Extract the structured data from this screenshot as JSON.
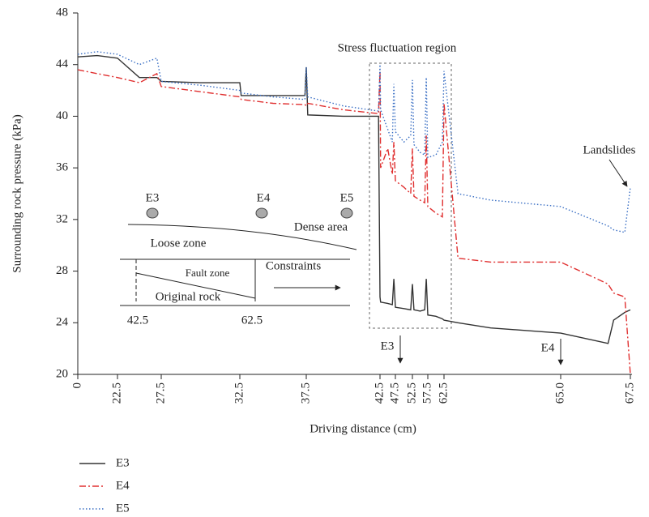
{
  "chart_data": {
    "type": "line",
    "x_label": "Driving distance (cm)",
    "y_label": "Surrounding rock pressure (kPa)",
    "xlim": [
      0,
      67.5
    ],
    "xticks": [
      0,
      22.5,
      27.5,
      32.5,
      37.5,
      42.5,
      47.5,
      52.5,
      57.5,
      62.5,
      {
        "value": 65,
        "label": "65.0"
      },
      67.5
    ],
    "ylim": [
      20,
      48
    ],
    "yticks": [
      20,
      24,
      28,
      32,
      36,
      40,
      44,
      48
    ],
    "x": [
      0,
      11,
      22.5,
      25,
      27,
      27.5,
      30,
      32.5,
      32.6,
      35,
      37.4,
      37.5,
      37.6,
      40,
      42.4,
      42.5,
      42.7,
      45,
      46.5,
      47,
      47.5,
      50,
      52,
      52.5,
      53,
      55,
      56.5,
      57,
      57.5,
      60,
      62,
      62.5,
      62.8,
      63.5,
      65,
      66.7,
      66.9,
      67.3,
      67.5
    ],
    "series": [
      {
        "name": "E3",
        "color": "#333333",
        "dash": "solid",
        "values": [
          44.6,
          44.7,
          44.5,
          43.0,
          43.0,
          42.7,
          42.6,
          42.6,
          41.6,
          41.6,
          41.6,
          43.8,
          40.1,
          40.0,
          40.0,
          26.0,
          25.6,
          25.5,
          25.4,
          27.4,
          25.2,
          25.1,
          25.0,
          27.0,
          25.0,
          24.9,
          25.0,
          27.4,
          24.6,
          24.5,
          24.3,
          24.2,
          24.0,
          23.6,
          23.2,
          22.4,
          24.2,
          24.8,
          25.0
        ]
      },
      {
        "name": "E4",
        "color": "#e03030",
        "dash": "dashdot",
        "values": [
          43.6,
          43.3,
          43.0,
          42.6,
          43.3,
          42.3,
          41.9,
          41.5,
          41.3,
          41.0,
          40.9,
          40.8,
          41.0,
          40.5,
          40.2,
          43.5,
          36.0,
          37.5,
          35.5,
          38.0,
          35.0,
          34.5,
          34.0,
          37.5,
          33.8,
          33.5,
          33.3,
          38.5,
          33.0,
          32.5,
          32.2,
          41.0,
          29.0,
          28.7,
          28.7,
          27.0,
          26.3,
          26.0,
          20.0
        ]
      },
      {
        "name": "E5",
        "color": "#3a6fc4",
        "dash": "dotted",
        "values": [
          44.8,
          45.0,
          44.8,
          44.0,
          44.5,
          42.7,
          42.4,
          42.0,
          41.8,
          41.5,
          41.3,
          43.8,
          41.5,
          40.8,
          40.4,
          44.0,
          40.5,
          39.0,
          38.0,
          42.5,
          38.8,
          38.0,
          38.5,
          42.8,
          37.8,
          37.2,
          37.0,
          43.0,
          36.8,
          37.0,
          38.0,
          43.5,
          34.0,
          33.5,
          33.0,
          31.5,
          31.2,
          31.0,
          34.5
        ]
      }
    ],
    "annotations": {
      "region": "Stress fluctuation region",
      "landslides": "Landslides",
      "marker_e3": "E3",
      "marker_e4": "E4"
    },
    "inset": {
      "e3": "E3",
      "e4": "E4",
      "e5": "E5",
      "dense": "Dense area",
      "loose": "Loose zone",
      "fault": "Fault zone",
      "constraints": "Constraints",
      "original": "Original rock",
      "left_mark": "42.5",
      "right_mark": "62.5"
    }
  }
}
